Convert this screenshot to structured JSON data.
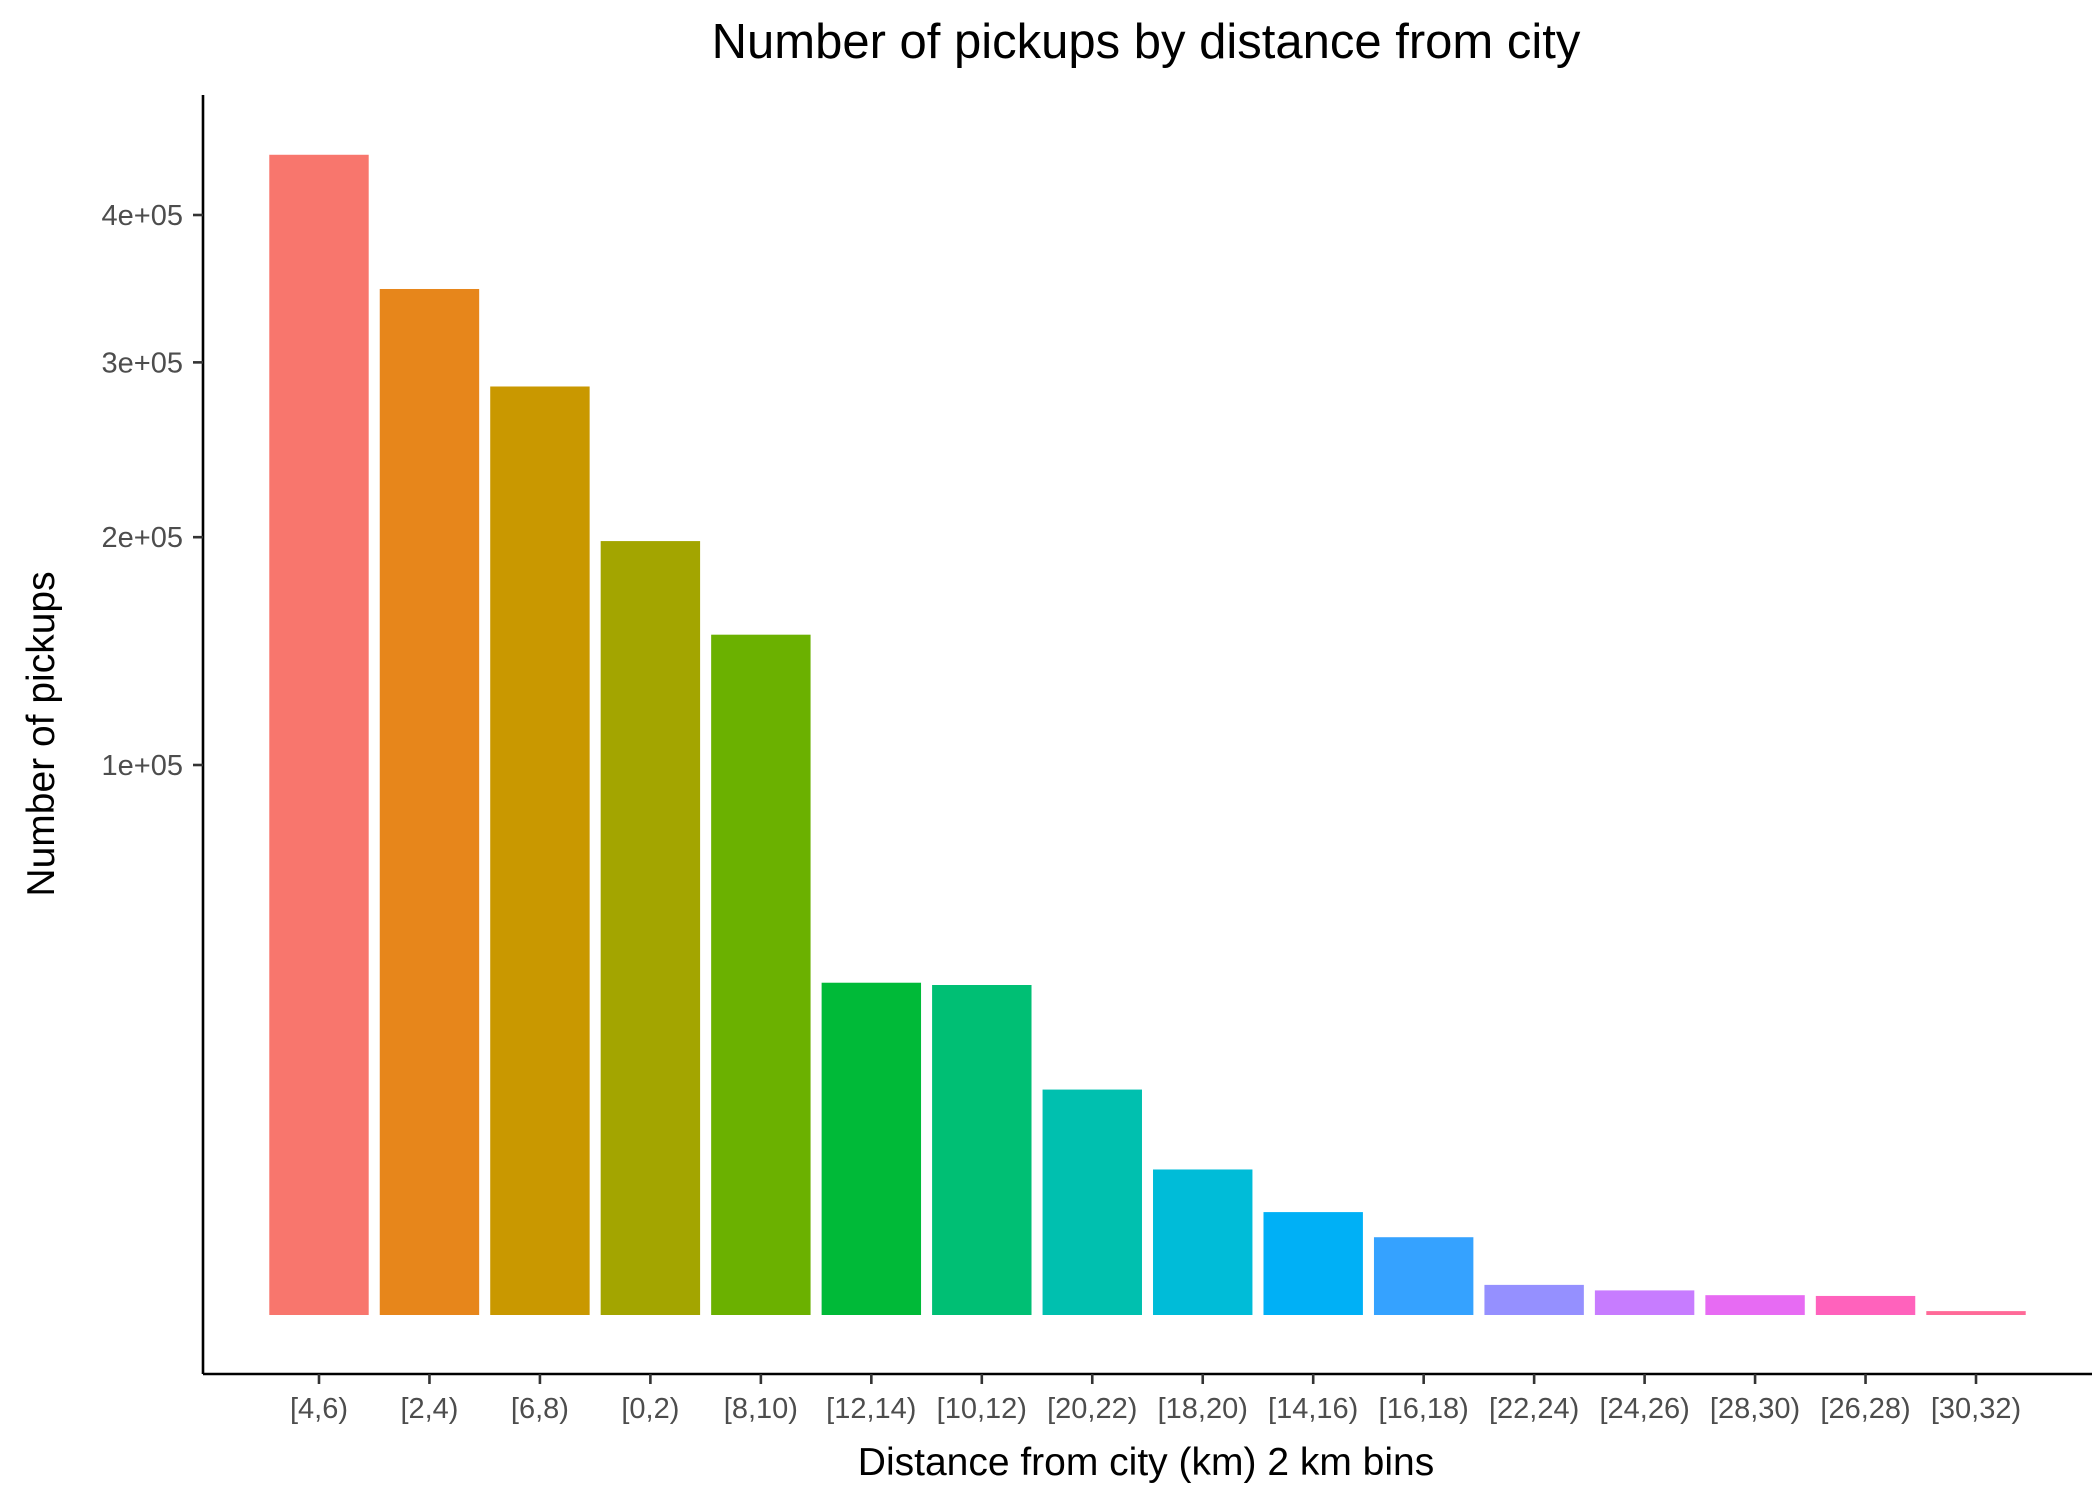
{
  "chart_data": {
    "type": "bar",
    "title": "Number of pickups by distance from city",
    "xlabel": "Distance from city (km) 2 km bins",
    "ylabel": "Number of pickups",
    "y_scale": "sqrt",
    "ylim": [
      0,
      460000
    ],
    "y_ticks": [
      {
        "value": 100000,
        "label": "1e+05"
      },
      {
        "value": 200000,
        "label": "2e+05"
      },
      {
        "value": 300000,
        "label": "3e+05"
      },
      {
        "value": 400000,
        "label": "4e+05"
      }
    ],
    "grid": false,
    "legend": "none",
    "categories": [
      "[4,6)",
      "[2,4)",
      "[6,8)",
      "[0,2)",
      "[8,10)",
      "[12,14)",
      "[10,12)",
      "[20,22)",
      "[18,20)",
      "[14,16)",
      "[16,18)",
      "[22,24)",
      "[24,26)",
      "[28,30)",
      "[26,28)",
      "[30,32)"
    ],
    "values": [
      445000,
      348000,
      285000,
      198000,
      153000,
      36500,
      36000,
      16800,
      7000,
      3500,
      2000,
      300,
      200,
      130,
      120,
      5
    ],
    "colors": [
      "#F8766D",
      "#E7861B",
      "#C99800",
      "#A3A500",
      "#6BB100",
      "#00BA38",
      "#00BF74",
      "#00C0AF",
      "#00BCD8",
      "#00B0F6",
      "#35A2FF",
      "#9590FF",
      "#C77CFF",
      "#E76BF3",
      "#FF62BC",
      "#FF6A98"
    ]
  }
}
